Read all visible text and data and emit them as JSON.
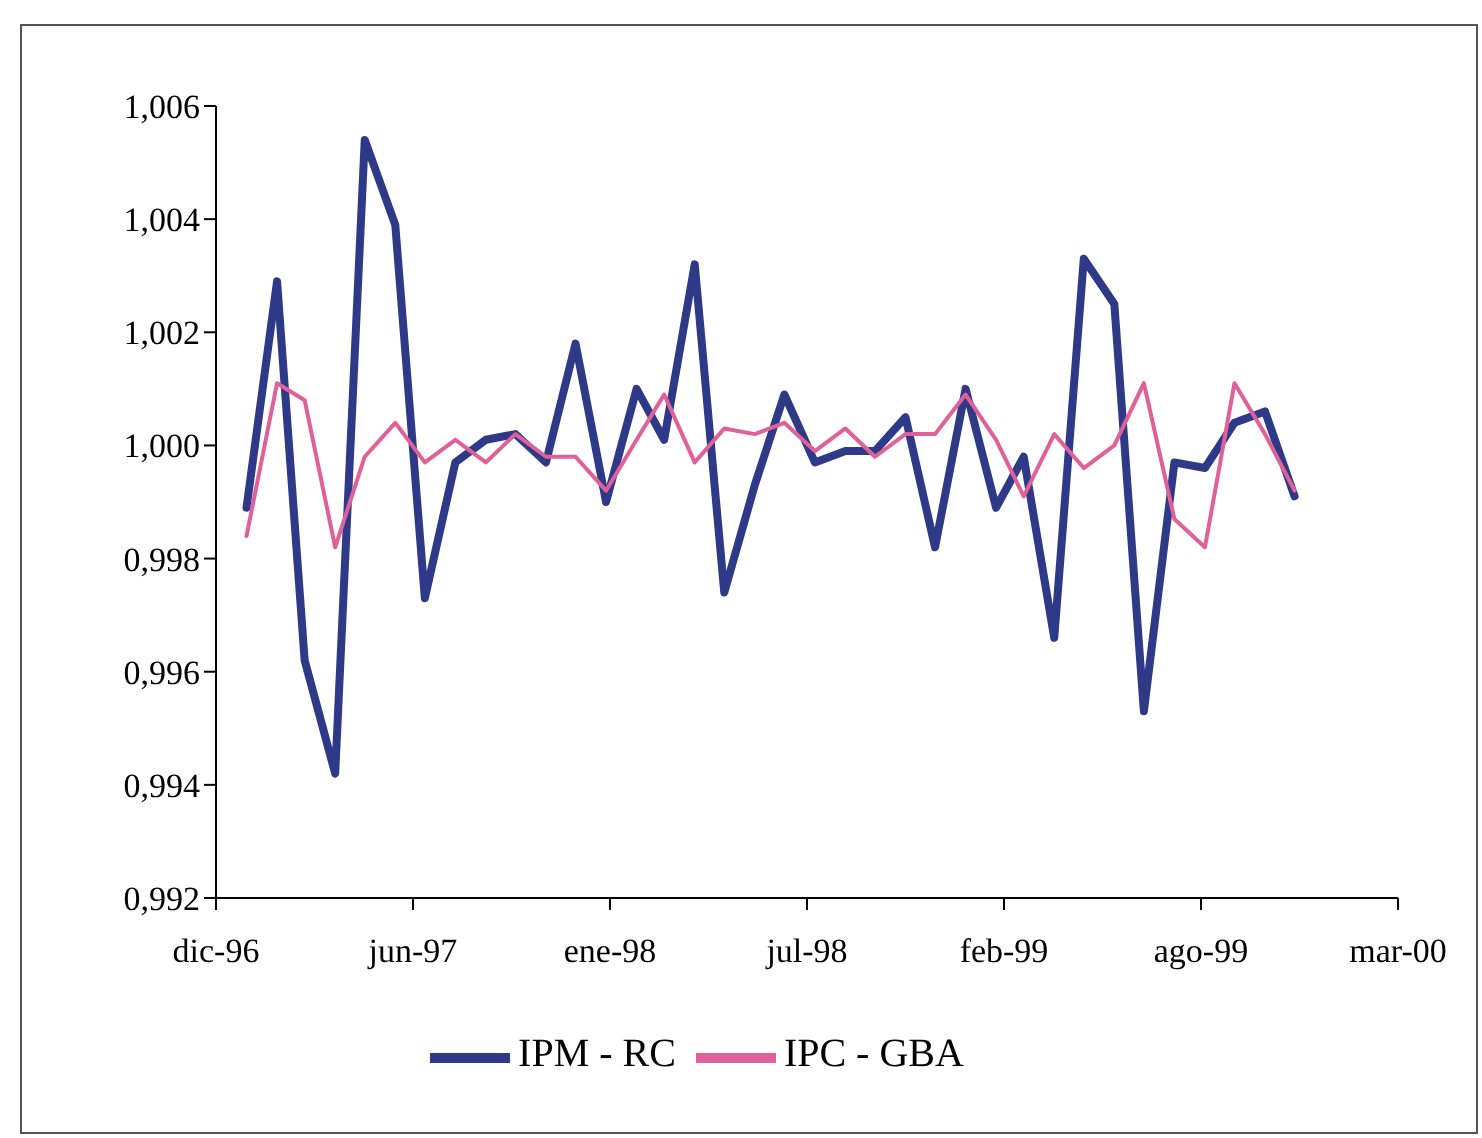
{
  "chart_data": {
    "type": "line",
    "x": [
      "1997-01",
      "1997-02",
      "1997-03",
      "1997-04",
      "1997-05",
      "1997-06",
      "1997-07",
      "1997-08",
      "1997-09",
      "1997-10",
      "1997-11",
      "1997-12",
      "1998-01",
      "1998-02",
      "1998-03",
      "1998-04",
      "1998-05",
      "1998-06",
      "1998-07",
      "1998-08",
      "1998-09",
      "1998-10",
      "1998-11",
      "1998-12",
      "1999-01",
      "1999-02",
      "1999-03",
      "1999-04",
      "1999-05",
      "1999-06",
      "1999-07",
      "1999-08",
      "1999-09",
      "1999-10",
      "1999-11",
      "1999-12"
    ],
    "series": [
      {
        "name": "IPM - RC",
        "color": "#2e3a87",
        "values": [
          0.9989,
          1.0029,
          0.9962,
          0.9942,
          1.0054,
          1.0039,
          0.9973,
          0.9997,
          1.0001,
          1.0002,
          0.9997,
          1.0018,
          0.999,
          1.001,
          1.0001,
          1.0032,
          0.9974,
          0.9993,
          1.0009,
          0.9997,
          0.9999,
          0.9999,
          1.0005,
          0.9982,
          1.001,
          0.9989,
          0.9998,
          0.9966,
          1.0033,
          1.0025,
          0.9953,
          0.9997,
          0.9996,
          1.0004,
          1.0006,
          0.9991
        ]
      },
      {
        "name": "IPC - GBA",
        "color": "#e0609a",
        "values": [
          0.9984,
          1.0011,
          1.0008,
          0.9982,
          0.9998,
          1.0004,
          0.9997,
          1.0001,
          0.9997,
          1.0002,
          0.9998,
          0.9998,
          0.9992,
          1.0001,
          1.0009,
          0.9997,
          1.0003,
          1.0002,
          1.0004,
          0.9999,
          1.0003,
          0.9998,
          1.0002,
          1.0002,
          1.0009,
          1.0001,
          0.9991,
          1.0002,
          0.9996,
          1.0,
          1.0011,
          0.9987,
          0.9982,
          1.0011,
          1.0002,
          0.9992
        ]
      }
    ],
    "xlim": [
      "1996-12-01",
      "2000-03-15"
    ],
    "xticks": [
      {
        "value": "1996-12-01",
        "label": "dic-96"
      },
      {
        "value": "1997-06-19",
        "label": "jun-97"
      },
      {
        "value": "1998-01-05",
        "label": "ene-98"
      },
      {
        "value": "1998-07-24",
        "label": "jul-98"
      },
      {
        "value": "1999-02-09",
        "label": "feb-99"
      },
      {
        "value": "1999-08-28",
        "label": "ago-99"
      },
      {
        "value": "2000-03-15",
        "label": "mar-00"
      }
    ],
    "ylim": [
      0.992,
      1.006
    ],
    "yticks": [
      {
        "value": 0.992,
        "label": "0,992"
      },
      {
        "value": 0.994,
        "label": "0,994"
      },
      {
        "value": 0.996,
        "label": "0,996"
      },
      {
        "value": 0.998,
        "label": "0,998"
      },
      {
        "value": 1.0,
        "label": "1,000"
      },
      {
        "value": 1.002,
        "label": "1,002"
      },
      {
        "value": 1.004,
        "label": "1,004"
      },
      {
        "value": 1.006,
        "label": "1,006"
      }
    ],
    "grid": false,
    "legend": "bottom",
    "marker": "none",
    "line_style": "solid"
  }
}
